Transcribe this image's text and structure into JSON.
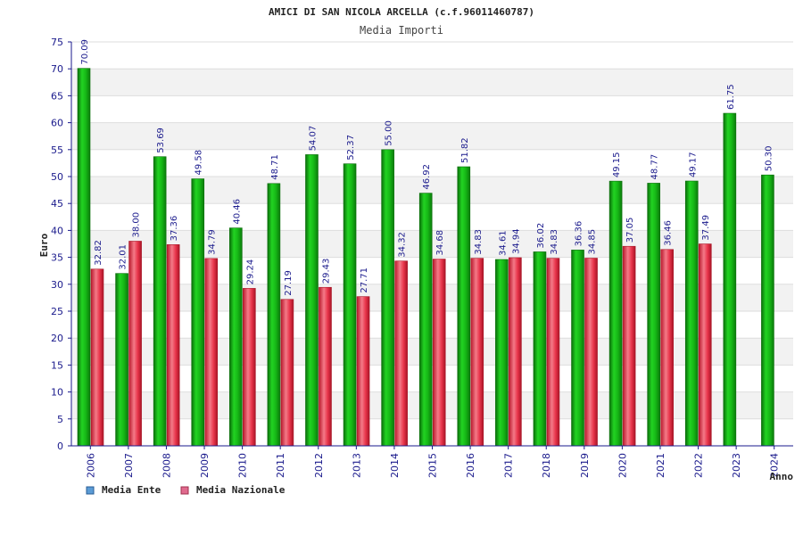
{
  "chart_data": {
    "type": "bar",
    "title": "AMICI DI SAN NICOLA ARCELLA (c.f.96011460787)",
    "subtitle": "Media Importi",
    "ylabel": "Euro",
    "xlabel": "Anno",
    "ylim": [
      0,
      75
    ],
    "ytick_step": 5,
    "grid": true,
    "legend_position": "bottom-left",
    "categories": [
      "2006",
      "2007",
      "2008",
      "2009",
      "2010",
      "2011",
      "2012",
      "2013",
      "2014",
      "2015",
      "2016",
      "2017",
      "2018",
      "2019",
      "2020",
      "2021",
      "2022",
      "2023",
      "2024"
    ],
    "series": [
      {
        "name": "Media Ente",
        "color": "#16b816",
        "legend_color": "#5b9bd5",
        "values": [
          70.09,
          32.01,
          53.69,
          49.58,
          40.46,
          48.71,
          54.07,
          52.37,
          55.0,
          46.92,
          51.82,
          34.61,
          36.02,
          36.36,
          49.15,
          48.77,
          49.17,
          61.75,
          50.3
        ],
        "labels": [
          "70.09",
          "32.01",
          "53.69",
          "49.58",
          "40.46",
          "48.71",
          "54.07",
          "52.37",
          "55.00",
          "46.92",
          "51.82",
          "34.61",
          "36.02",
          "36.36",
          "49.15",
          "48.77",
          "49.17",
          "61.75",
          "50.30"
        ]
      },
      {
        "name": "Media Nazionale",
        "color": "#e8344a",
        "legend_color": "#e06a8e",
        "values": [
          32.82,
          38.0,
          37.36,
          34.79,
          29.24,
          27.19,
          29.43,
          27.71,
          34.32,
          34.68,
          34.83,
          34.94,
          34.83,
          34.85,
          37.05,
          36.46,
          37.49,
          null,
          null
        ],
        "labels": [
          "32.82",
          "38.00",
          "37.36",
          "34.79",
          "29.24",
          "27.19",
          "29.43",
          "27.71",
          "34.32",
          "34.68",
          "34.83",
          "34.94",
          "34.83",
          "34.85",
          "37.05",
          "36.46",
          "37.49",
          null,
          null
        ]
      }
    ]
  }
}
